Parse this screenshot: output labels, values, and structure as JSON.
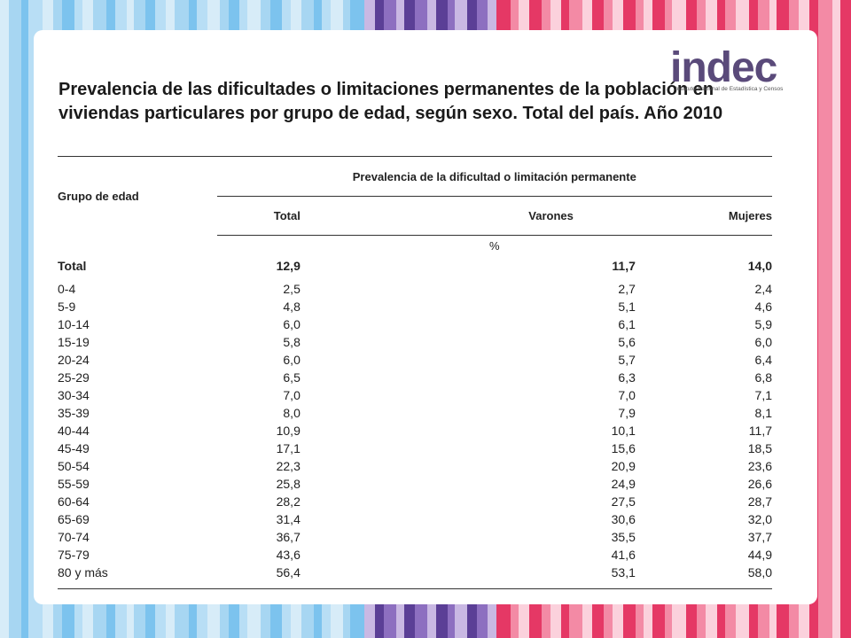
{
  "title": "Prevalencia de las dificultades o limitaciones permanentes de la población en viviendas particulares por grupo de edad, según sexo. Total del país. Año 2010",
  "logo": {
    "word": "indec",
    "subtitle": "Instituto Nacional de Estadística y Censos"
  },
  "colors": {
    "left_stripes": [
      "#d7ecf8",
      "#a7d6f2",
      "#7cc3ee",
      "#b8def5"
    ],
    "mid_stripes": [
      "#5b3f96",
      "#8d6fc0",
      "#c9b8e3"
    ],
    "right_stripes": [
      "#e53865",
      "#f38aa5",
      "#fbd1dc"
    ]
  },
  "table": {
    "group_header": "Grupo de edad",
    "super_header": "Prevalencia de la dificultad o limitación permanente",
    "columns": [
      "Total",
      "Varones",
      "Mujeres"
    ],
    "unit": "%",
    "total_row": {
      "label": "Total",
      "values": [
        "12,9",
        "11,7",
        "14,0"
      ]
    },
    "rows": [
      {
        "label": "0-4",
        "values": [
          "2,5",
          "2,7",
          "2,4"
        ]
      },
      {
        "label": "5-9",
        "values": [
          "4,8",
          "5,1",
          "4,6"
        ]
      },
      {
        "label": "10-14",
        "values": [
          "6,0",
          "6,1",
          "5,9"
        ]
      },
      {
        "label": "15-19",
        "values": [
          "5,8",
          "5,6",
          "6,0"
        ]
      },
      {
        "label": "20-24",
        "values": [
          "6,0",
          "5,7",
          "6,4"
        ]
      },
      {
        "label": "25-29",
        "values": [
          "6,5",
          "6,3",
          "6,8"
        ]
      },
      {
        "label": "30-34",
        "values": [
          "7,0",
          "7,0",
          "7,1"
        ]
      },
      {
        "label": "35-39",
        "values": [
          "8,0",
          "7,9",
          "8,1"
        ]
      },
      {
        "label": "40-44",
        "values": [
          "10,9",
          "10,1",
          "11,7"
        ]
      },
      {
        "label": "45-49",
        "values": [
          "17,1",
          "15,6",
          "18,5"
        ]
      },
      {
        "label": "50-54",
        "values": [
          "22,3",
          "20,9",
          "23,6"
        ]
      },
      {
        "label": "55-59",
        "values": [
          "25,8",
          "24,9",
          "26,6"
        ]
      },
      {
        "label": "60-64",
        "values": [
          "28,2",
          "27,5",
          "28,7"
        ]
      },
      {
        "label": "65-69",
        "values": [
          "31,4",
          "30,6",
          "32,0"
        ]
      },
      {
        "label": "70-74",
        "values": [
          "36,7",
          "35,5",
          "37,7"
        ]
      },
      {
        "label": "75-79",
        "values": [
          "43,6",
          "41,6",
          "44,9"
        ]
      },
      {
        "label": "80 y más",
        "values": [
          "56,4",
          "53,1",
          "58,0"
        ]
      }
    ]
  }
}
